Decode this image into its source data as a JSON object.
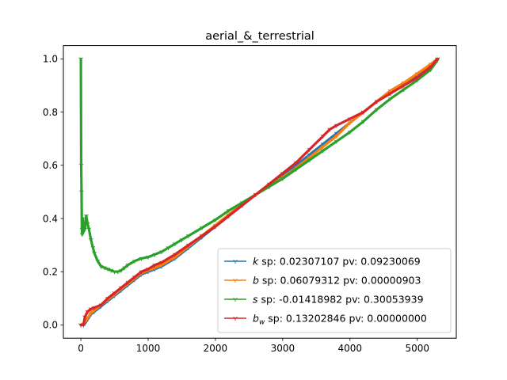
{
  "chart_data": {
    "type": "line",
    "title": "aerial_&_terrestrial",
    "xlabel": "",
    "ylabel": "",
    "xlim": [
      -260,
      5580
    ],
    "ylim": [
      -0.05,
      1.05
    ],
    "xticks": [
      0,
      1000,
      2000,
      3000,
      4000,
      5000
    ],
    "yticks": [
      0.0,
      0.2,
      0.4,
      0.6,
      0.8,
      1.0
    ],
    "xtick_labels": [
      "0",
      "1000",
      "2000",
      "3000",
      "4000",
      "5000"
    ],
    "ytick_labels": [
      "0.0",
      "0.2",
      "0.4",
      "0.6",
      "0.8",
      "1.0"
    ],
    "grid": false,
    "legend_position": "lower-right",
    "series": [
      {
        "symbol": "k",
        "subscript": "",
        "name": "sp: 0.02307107 pv: 0.09230069",
        "color": "#1f77b4",
        "x": [
          0,
          60,
          100,
          150,
          200,
          300,
          400,
          500,
          600,
          700,
          800,
          900,
          1000,
          1100,
          1200,
          1400,
          1600,
          1800,
          2000,
          2200,
          2400,
          2600,
          2800,
          3000,
          3200,
          3400,
          3600,
          3800,
          4000,
          4200,
          4400,
          4600,
          4800,
          5000,
          5200,
          5300
        ],
        "y": [
          0.0,
          0.005,
          0.02,
          0.04,
          0.05,
          0.07,
          0.09,
          0.11,
          0.13,
          0.15,
          0.17,
          0.19,
          0.2,
          0.21,
          0.22,
          0.25,
          0.29,
          0.33,
          0.37,
          0.41,
          0.45,
          0.49,
          0.52,
          0.56,
          0.6,
          0.64,
          0.68,
          0.72,
          0.76,
          0.8,
          0.84,
          0.88,
          0.91,
          0.94,
          0.98,
          1.0
        ]
      },
      {
        "symbol": "b",
        "subscript": "",
        "name": "sp: 0.06079312 pv: 0.00000903",
        "color": "#ff7f0e",
        "x": [
          0,
          60,
          100,
          150,
          200,
          300,
          400,
          500,
          600,
          700,
          800,
          900,
          1000,
          1100,
          1200,
          1400,
          1600,
          1800,
          2000,
          2200,
          2400,
          2600,
          2800,
          3000,
          3200,
          3400,
          3600,
          3800,
          4000,
          4200,
          4400,
          4600,
          4800,
          5000,
          5200,
          5300
        ],
        "y": [
          0.0,
          0.01,
          0.025,
          0.045,
          0.055,
          0.075,
          0.095,
          0.115,
          0.135,
          0.155,
          0.175,
          0.195,
          0.205,
          0.215,
          0.225,
          0.255,
          0.295,
          0.335,
          0.375,
          0.415,
          0.455,
          0.49,
          0.52,
          0.555,
          0.59,
          0.63,
          0.67,
          0.71,
          0.76,
          0.8,
          0.84,
          0.88,
          0.91,
          0.945,
          0.98,
          1.0
        ]
      },
      {
        "symbol": "s",
        "subscript": "",
        "name": "sp: -0.01418982 pv: 0.30053939",
        "color": "#2ca02c",
        "x": [
          0,
          5,
          10,
          15,
          20,
          30,
          40,
          50,
          60,
          80,
          100,
          120,
          150,
          180,
          200,
          250,
          300,
          350,
          400,
          450,
          500,
          550,
          600,
          650,
          700,
          800,
          900,
          1000,
          1100,
          1200,
          1300,
          1400,
          1500,
          1600,
          1800,
          2000,
          2200,
          2400,
          2600,
          2800,
          3000,
          3200,
          3400,
          3600,
          3800,
          4000,
          4200,
          4400,
          4600,
          4800,
          5000,
          5200,
          5300
        ],
        "y": [
          1.0,
          0.6,
          0.5,
          0.36,
          0.34,
          0.4,
          0.35,
          0.38,
          0.36,
          0.41,
          0.38,
          0.36,
          0.32,
          0.29,
          0.27,
          0.24,
          0.22,
          0.215,
          0.21,
          0.205,
          0.2,
          0.2,
          0.205,
          0.215,
          0.225,
          0.24,
          0.25,
          0.255,
          0.265,
          0.275,
          0.29,
          0.305,
          0.32,
          0.335,
          0.365,
          0.395,
          0.43,
          0.46,
          0.49,
          0.52,
          0.55,
          0.585,
          0.62,
          0.655,
          0.69,
          0.725,
          0.765,
          0.81,
          0.85,
          0.885,
          0.92,
          0.96,
          0.995
        ]
      },
      {
        "symbol": "b",
        "subscript": "w",
        "name": "sp: 0.13202846 pv: 0.00000000",
        "color": "#d62728",
        "x": [
          0,
          40,
          60,
          100,
          150,
          200,
          300,
          400,
          500,
          600,
          700,
          800,
          900,
          1000,
          1100,
          1200,
          1400,
          1600,
          1800,
          2000,
          2200,
          2400,
          2600,
          2800,
          3000,
          3200,
          3400,
          3600,
          3700,
          3800,
          4000,
          4200,
          4400,
          4600,
          4800,
          5000,
          5200,
          5300
        ],
        "y": [
          0.0,
          0.0,
          0.03,
          0.05,
          0.06,
          0.065,
          0.075,
          0.1,
          0.12,
          0.14,
          0.16,
          0.18,
          0.2,
          0.21,
          0.225,
          0.235,
          0.265,
          0.3,
          0.335,
          0.37,
          0.41,
          0.45,
          0.49,
          0.53,
          0.57,
          0.61,
          0.66,
          0.71,
          0.735,
          0.75,
          0.775,
          0.8,
          0.84,
          0.87,
          0.9,
          0.93,
          0.97,
          1.0
        ]
      }
    ]
  }
}
